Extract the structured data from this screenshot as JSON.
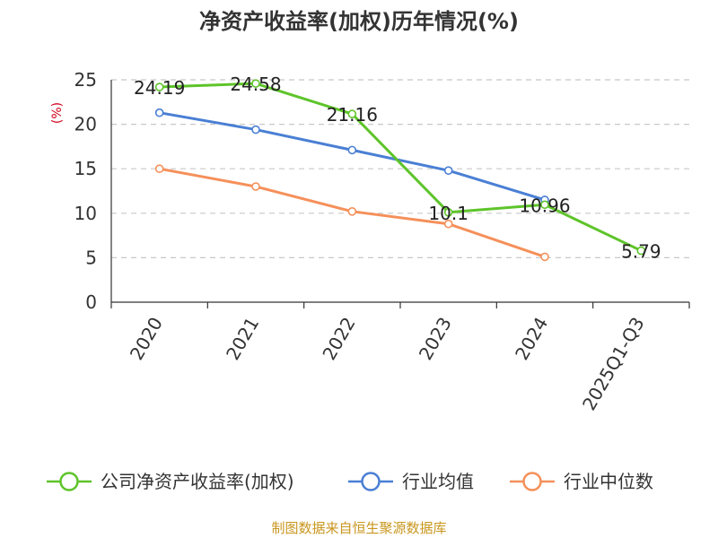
{
  "chart_data": {
    "type": "line",
    "title": "净资产收益率(加权)历年情况(%)",
    "ylabel": "(%)",
    "xlabel": "",
    "categories": [
      "2020",
      "2021",
      "2022",
      "2023",
      "2024",
      "2025Q1-Q3"
    ],
    "ylim": [
      0,
      25
    ],
    "yticks": [
      0,
      5,
      10,
      15,
      20,
      25
    ],
    "grid": true,
    "legend_position": "bottom",
    "series": [
      {
        "name": "公司净资产收益率(加权)",
        "color": "#5ec42a",
        "values": [
          24.19,
          24.58,
          21.16,
          10.1,
          10.96,
          5.79
        ],
        "labels": [
          "24.19",
          "24.58",
          "21.16",
          "10.1",
          "10.96",
          "5.79"
        ]
      },
      {
        "name": "行业均值",
        "color": "#4a7fd4",
        "values": [
          21.3,
          19.4,
          17.1,
          14.8,
          11.5,
          null
        ]
      },
      {
        "name": "行业中位数",
        "color": "#f5905a",
        "values": [
          15.0,
          13.0,
          10.2,
          8.8,
          5.1,
          null
        ]
      }
    ],
    "source": "制图数据来自恒生聚源数据库",
    "ylabel_color": "#d0021b",
    "source_color": "#c8961e"
  }
}
